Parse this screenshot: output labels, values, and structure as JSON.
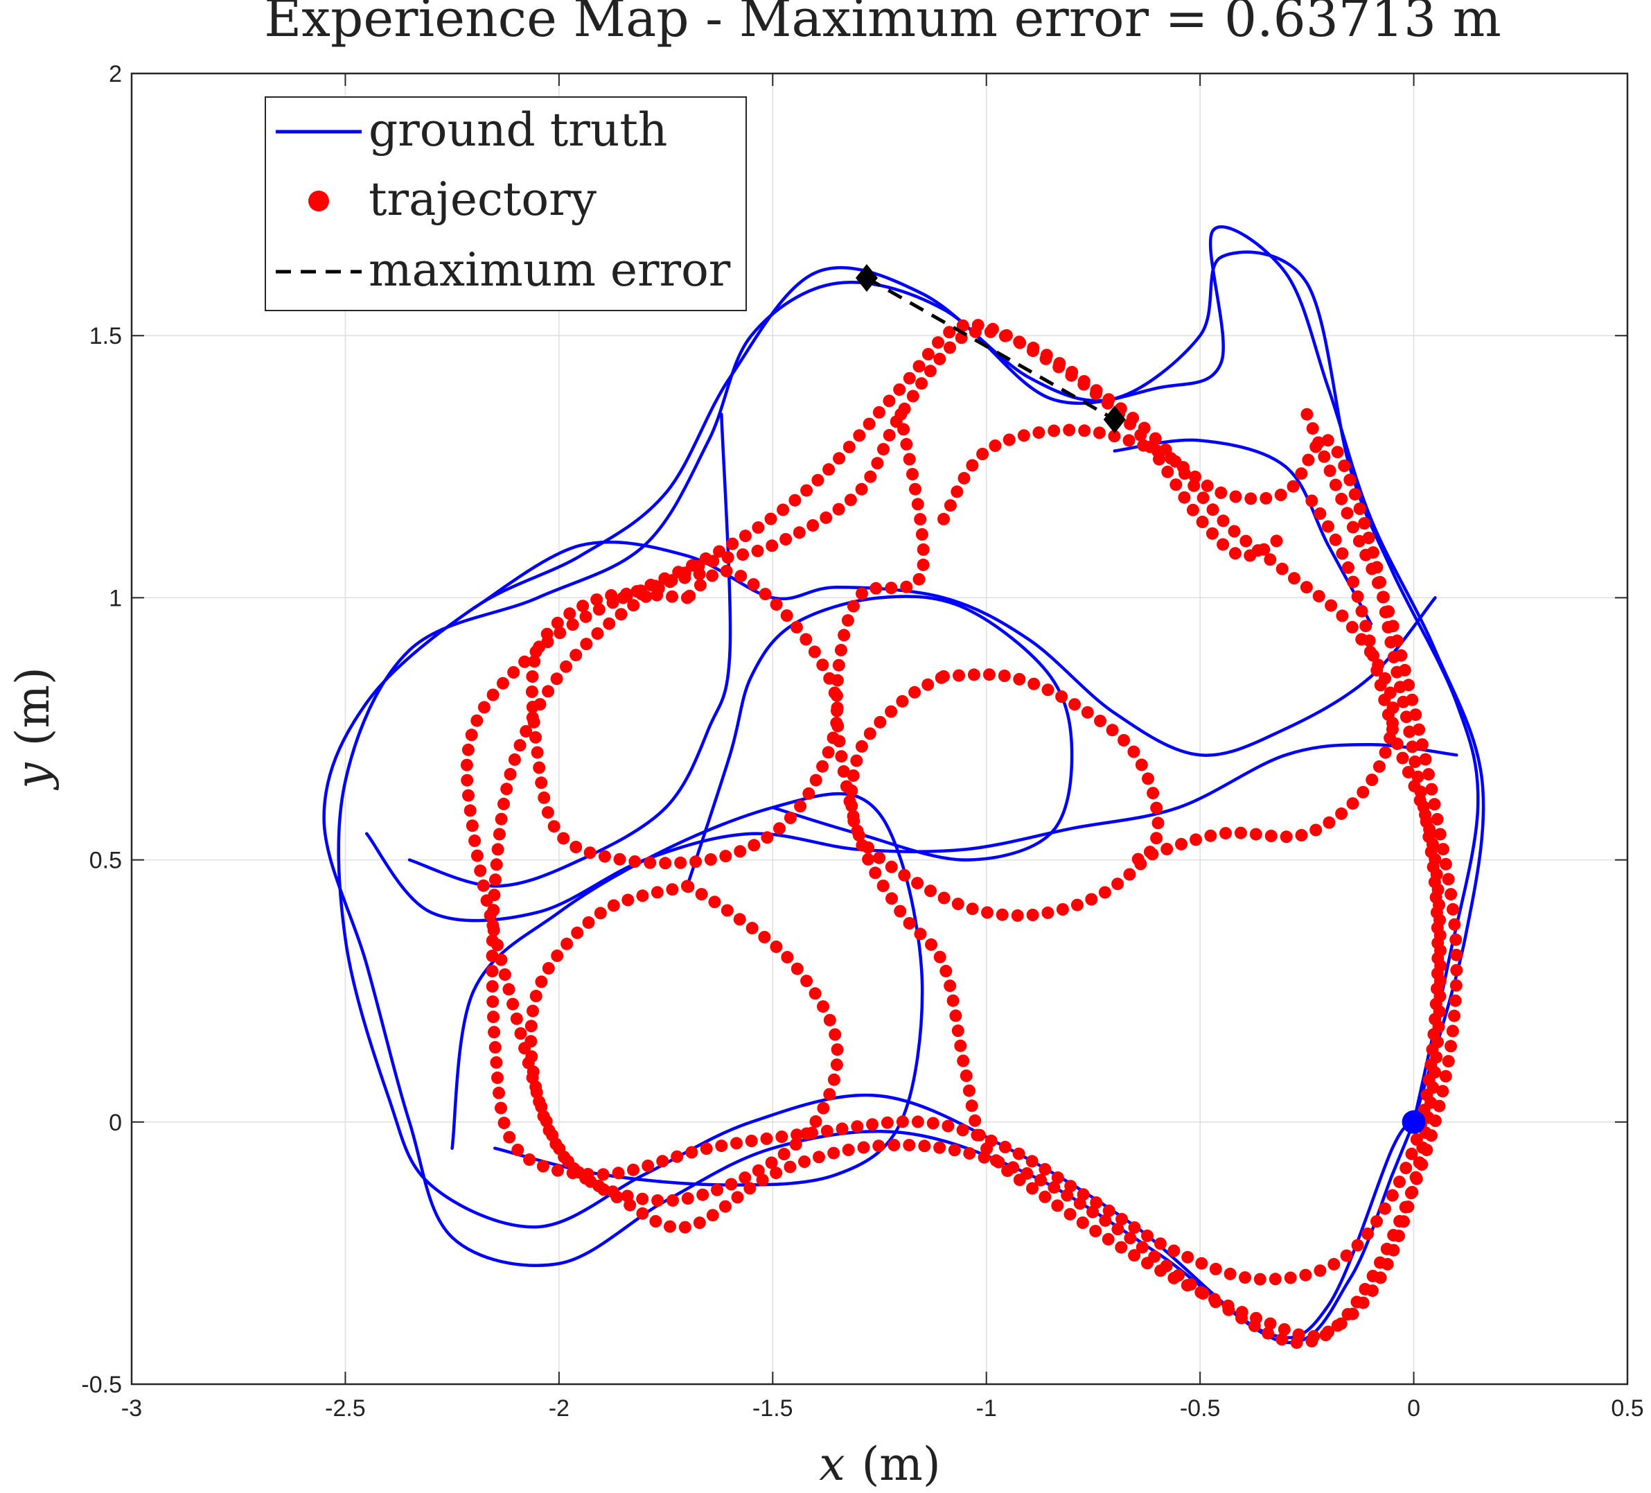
{
  "chart_data": {
    "type": "line",
    "title": "Experience Map - Maximum error = 0.63713 m",
    "xlabel": "x",
    "xlabel_unit": "(m)",
    "ylabel": "y",
    "ylabel_unit": "(m)",
    "xlim": [
      -3,
      0.5
    ],
    "ylim": [
      -0.5,
      2
    ],
    "xticks": [
      "-3",
      "-2.5",
      "-2",
      "-1.5",
      "-1",
      "-0.5",
      "0",
      "0.5"
    ],
    "yticks": [
      "-0.5",
      "0",
      "0.5",
      "1",
      "1.5",
      "2"
    ],
    "grid": true,
    "legend_position": "top-left",
    "legend": [
      {
        "label": "ground truth",
        "style": "line",
        "color": "#0000ff"
      },
      {
        "label": "trajectory",
        "style": "dots",
        "color": "#ff0000"
      },
      {
        "label": "maximum error",
        "style": "dashed",
        "color": "#000000"
      }
    ],
    "series": [
      {
        "name": "ground truth",
        "color": "#0000ff",
        "loops": [
          [
            [
              0,
              0
            ],
            [
              0.08,
              0.3
            ],
            [
              0.15,
              0.6
            ],
            [
              0.1,
              0.8
            ],
            [
              -0.05,
              1.05
            ],
            [
              -0.15,
              1.25
            ],
            [
              -0.25,
              1.6
            ],
            [
              -0.45,
              1.65
            ],
            [
              -0.5,
              1.5
            ],
            [
              -0.7,
              1.38
            ],
            [
              -0.9,
              1.42
            ],
            [
              -1.15,
              1.58
            ],
            [
              -1.4,
              1.62
            ],
            [
              -1.6,
              1.42
            ],
            [
              -1.75,
              1.2
            ],
            [
              -1.95,
              1.08
            ],
            [
              -2.2,
              0.98
            ],
            [
              -2.45,
              0.8
            ],
            [
              -2.55,
              0.58
            ],
            [
              -2.45,
              0.3
            ],
            [
              -2.35,
              0.0
            ],
            [
              -2.25,
              -0.22
            ],
            [
              -2.0,
              -0.27
            ],
            [
              -1.75,
              -0.15
            ],
            [
              -1.5,
              -0.05
            ],
            [
              -1.2,
              -0.02
            ],
            [
              -0.9,
              -0.1
            ],
            [
              -0.6,
              -0.25
            ],
            [
              -0.3,
              -0.42
            ],
            [
              -0.15,
              -0.3
            ],
            [
              -0.05,
              -0.1
            ],
            [
              0,
              0
            ]
          ],
          [
            [
              0,
              0
            ],
            [
              0.12,
              0.35
            ],
            [
              0.16,
              0.65
            ],
            [
              0.05,
              0.9
            ],
            [
              -0.1,
              1.15
            ],
            [
              -0.2,
              1.4
            ],
            [
              -0.3,
              1.62
            ],
            [
              -0.47,
              1.7
            ],
            [
              -0.45,
              1.45
            ],
            [
              -0.6,
              1.4
            ],
            [
              -0.85,
              1.38
            ],
            [
              -1.1,
              1.55
            ],
            [
              -1.35,
              1.6
            ],
            [
              -1.55,
              1.5
            ],
            [
              -1.65,
              1.3
            ],
            [
              -1.8,
              1.1
            ],
            [
              -2.05,
              1.0
            ],
            [
              -2.35,
              0.9
            ],
            [
              -2.5,
              0.65
            ],
            [
              -2.5,
              0.35
            ],
            [
              -2.4,
              0.05
            ],
            [
              -2.3,
              -0.12
            ],
            [
              -2.05,
              -0.2
            ],
            [
              -1.8,
              -0.1
            ],
            [
              -1.55,
              0.0
            ],
            [
              -1.25,
              0.05
            ],
            [
              -0.95,
              -0.05
            ],
            [
              -0.65,
              -0.2
            ],
            [
              -0.35,
              -0.4
            ],
            [
              -0.2,
              -0.35
            ],
            [
              -0.05,
              -0.05
            ],
            [
              0,
              0
            ]
          ],
          [
            [
              -2.45,
              0.55
            ],
            [
              -2.3,
              0.4
            ],
            [
              -2.05,
              0.4
            ],
            [
              -1.8,
              0.5
            ],
            [
              -1.55,
              0.55
            ],
            [
              -1.3,
              0.52
            ],
            [
              -1.05,
              0.52
            ],
            [
              -0.8,
              0.56
            ],
            [
              -0.55,
              0.6
            ],
            [
              -0.3,
              0.7
            ],
            [
              -0.1,
              0.72
            ],
            [
              0.1,
              0.7
            ]
          ],
          [
            [
              -2.25,
              -0.05
            ],
            [
              -2.2,
              0.25
            ],
            [
              -2.0,
              0.4
            ],
            [
              -1.75,
              0.52
            ],
            [
              -1.5,
              0.6
            ],
            [
              -1.3,
              0.62
            ],
            [
              -1.2,
              0.5
            ],
            [
              -1.15,
              0.25
            ],
            [
              -1.2,
              0.0
            ],
            [
              -1.35,
              -0.1
            ],
            [
              -1.6,
              -0.12
            ],
            [
              -1.9,
              -0.1
            ],
            [
              -2.15,
              -0.05
            ]
          ],
          [
            [
              -1.7,
              0.45
            ],
            [
              -1.6,
              0.7
            ],
            [
              -1.55,
              0.85
            ],
            [
              -1.45,
              0.95
            ],
            [
              -1.25,
              1.0
            ],
            [
              -1.05,
              0.98
            ],
            [
              -0.85,
              0.85
            ],
            [
              -0.8,
              0.7
            ],
            [
              -0.85,
              0.55
            ],
            [
              -1.05,
              0.5
            ],
            [
              -1.3,
              0.55
            ],
            [
              -1.5,
              0.6
            ]
          ],
          [
            [
              -2.2,
              0.98
            ],
            [
              -1.95,
              1.1
            ],
            [
              -1.7,
              1.08
            ],
            [
              -1.5,
              1.0
            ],
            [
              -1.35,
              1.02
            ],
            [
              -1.1,
              1.0
            ],
            [
              -0.9,
              0.92
            ],
            [
              -0.7,
              0.78
            ],
            [
              -0.5,
              0.7
            ],
            [
              -0.3,
              0.75
            ],
            [
              -0.1,
              0.85
            ],
            [
              0.05,
              1.0
            ]
          ],
          [
            [
              -1.62,
              1.35
            ],
            [
              -1.6,
              0.9
            ],
            [
              -1.65,
              0.75
            ],
            [
              -1.75,
              0.6
            ],
            [
              -1.95,
              0.5
            ],
            [
              -2.15,
              0.45
            ],
            [
              -2.35,
              0.5
            ]
          ],
          [
            [
              -0.7,
              1.28
            ],
            [
              -0.5,
              1.3
            ],
            [
              -0.3,
              1.25
            ],
            [
              -0.2,
              1.1
            ],
            [
              -0.1,
              0.95
            ]
          ]
        ]
      },
      {
        "name": "trajectory",
        "color": "#ff0000",
        "loops": [
          [
            [
              -1.7,
              1.0
            ],
            [
              -1.9,
              1.0
            ],
            [
              -2.05,
              0.9
            ],
            [
              -2.05,
              0.7
            ],
            [
              -2.0,
              0.55
            ],
            [
              -1.85,
              0.5
            ],
            [
              -1.65,
              0.5
            ],
            [
              -1.5,
              0.55
            ],
            [
              -1.4,
              0.65
            ],
            [
              -1.35,
              0.8
            ],
            [
              -1.45,
              0.95
            ],
            [
              -1.6,
              1.05
            ],
            [
              -1.7,
              1.0
            ]
          ],
          [
            [
              -1.1,
              0.85
            ],
            [
              -0.95,
              0.85
            ],
            [
              -0.8,
              0.8
            ],
            [
              -0.65,
              0.7
            ],
            [
              -0.6,
              0.55
            ],
            [
              -0.7,
              0.45
            ],
            [
              -0.85,
              0.4
            ],
            [
              -1.0,
              0.4
            ],
            [
              -1.15,
              0.45
            ],
            [
              -1.3,
              0.55
            ],
            [
              -1.3,
              0.7
            ],
            [
              -1.2,
              0.8
            ],
            [
              -1.1,
              0.85
            ]
          ],
          [
            [
              -1.7,
              0.45
            ],
            [
              -1.9,
              0.4
            ],
            [
              -2.05,
              0.25
            ],
            [
              -2.05,
              0.05
            ],
            [
              -1.95,
              -0.1
            ],
            [
              -1.75,
              -0.15
            ],
            [
              -1.55,
              -0.1
            ],
            [
              -1.4,
              0.0
            ],
            [
              -1.35,
              0.15
            ],
            [
              -1.45,
              0.3
            ],
            [
              -1.6,
              0.4
            ],
            [
              -1.7,
              0.45
            ]
          ],
          [
            [
              -1.1,
              1.15
            ],
            [
              -1.0,
              1.28
            ],
            [
              -0.8,
              1.32
            ],
            [
              -0.6,
              1.28
            ],
            [
              -0.45,
              1.2
            ],
            [
              -0.3,
              1.2
            ],
            [
              -0.2,
              1.3
            ],
            [
              -0.1,
              1.1
            ],
            [
              -0.05,
              0.9
            ],
            [
              0.0,
              0.7
            ],
            [
              0.05,
              0.45
            ],
            [
              0.05,
              0.2
            ],
            [
              0.0,
              -0.05
            ],
            [
              -0.15,
              -0.25
            ],
            [
              -0.35,
              -0.3
            ],
            [
              -0.55,
              -0.25
            ],
            [
              -0.75,
              -0.15
            ],
            [
              -0.95,
              -0.05
            ],
            [
              -1.15,
              0.0
            ],
            [
              -1.4,
              -0.02
            ],
            [
              -1.65,
              -0.05
            ],
            [
              -1.9,
              -0.1
            ],
            [
              -2.1,
              -0.05
            ],
            [
              -2.15,
              0.15
            ],
            [
              -2.15,
              0.45
            ],
            [
              -2.1,
              0.7
            ],
            [
              -1.95,
              0.9
            ],
            [
              -1.7,
              1.05
            ],
            [
              -1.5,
              1.1
            ],
            [
              -1.3,
              1.2
            ],
            [
              -1.2,
              1.35
            ],
            [
              -1.05,
              1.5
            ],
            [
              -0.9,
              1.48
            ],
            [
              -0.75,
              1.4
            ],
            [
              -0.6,
              1.3
            ],
            [
              -0.45,
              1.15
            ],
            [
              -0.3,
              1.05
            ],
            [
              -0.15,
              0.95
            ],
            [
              -0.05,
              0.8
            ],
            [
              -0.1,
              0.65
            ],
            [
              -0.25,
              0.55
            ],
            [
              -0.45,
              0.55
            ],
            [
              -0.65,
              0.5
            ]
          ],
          [
            [
              -0.25,
              1.35
            ],
            [
              -0.15,
              1.15
            ],
            [
              -0.05,
              0.95
            ],
            [
              0.05,
              0.6
            ],
            [
              0.1,
              0.3
            ],
            [
              0.05,
              0.0
            ],
            [
              -0.1,
              -0.3
            ],
            [
              -0.25,
              -0.42
            ],
            [
              -0.45,
              -0.35
            ],
            [
              -0.7,
              -0.2
            ],
            [
              -0.9,
              -0.1
            ],
            [
              -1.1,
              -0.05
            ],
            [
              -1.3,
              -0.05
            ],
            [
              -1.5,
              -0.1
            ],
            [
              -1.7,
              -0.2
            ],
            [
              -1.85,
              -0.15
            ],
            [
              -2.0,
              -0.05
            ],
            [
              -2.1,
              0.2
            ],
            [
              -2.2,
              0.55
            ],
            [
              -2.2,
              0.75
            ],
            [
              -2.05,
              0.9
            ],
            [
              -1.85,
              1.0
            ],
            [
              -1.65,
              1.05
            ]
          ],
          [
            [
              -1.2,
              1.35
            ],
            [
              -1.15,
              1.05
            ],
            [
              -1.3,
              1.0
            ],
            [
              -1.35,
              0.8
            ],
            [
              -1.3,
              0.55
            ],
            [
              -1.2,
              0.4
            ],
            [
              -1.1,
              0.3
            ],
            [
              -1.05,
              0.1
            ],
            [
              -1.0,
              -0.05
            ],
            [
              -0.85,
              -0.15
            ],
            [
              -0.6,
              -0.28
            ],
            [
              -0.35,
              -0.38
            ],
            [
              -0.2,
              -0.4
            ],
            [
              -0.05,
              -0.25
            ],
            [
              0.05,
              0.1
            ],
            [
              0.05,
              0.5
            ],
            [
              -0.05,
              0.75
            ],
            [
              -0.15,
              1.05
            ],
            [
              -0.25,
              1.2
            ]
          ],
          [
            [
              -1.85,
              1.0
            ],
            [
              -1.6,
              1.1
            ],
            [
              -1.4,
              1.22
            ],
            [
              -1.2,
              1.4
            ],
            [
              -1.05,
              1.52
            ],
            [
              -0.85,
              1.45
            ],
            [
              -0.65,
              1.32
            ],
            [
              -0.5,
              1.15
            ],
            [
              -0.4,
              1.08
            ],
            [
              -0.3,
              1.12
            ]
          ]
        ]
      },
      {
        "name": "maximum error",
        "color": "#000000",
        "points": [
          [
            -1.28,
            1.61
          ],
          [
            -0.7,
            1.34
          ]
        ]
      }
    ],
    "start_marker": {
      "x": 0,
      "y": 0,
      "color": "#0000ff"
    }
  }
}
